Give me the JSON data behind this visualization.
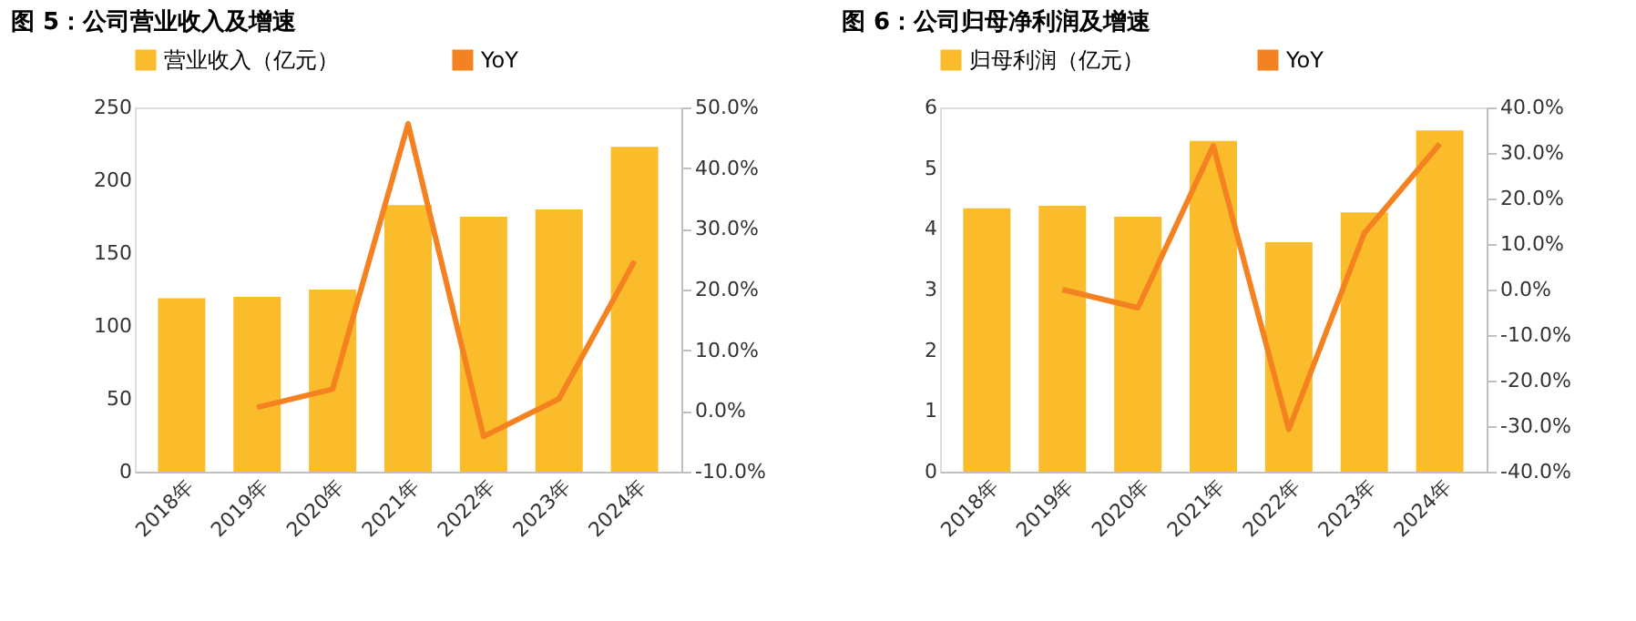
{
  "chart_data": [
    {
      "type": "bar",
      "title": "图 5：公司营业收入及增速",
      "categories": [
        "2018年",
        "2019年",
        "2020年",
        "2021年",
        "2022年",
        "2023年",
        "2024年"
      ],
      "legend": "top",
      "grid": false,
      "series": [
        {
          "name": "营业收入（亿元）",
          "color": "#fbbc2c",
          "values": [
            119,
            120,
            125,
            183,
            175,
            180,
            223
          ]
        },
        {
          "name": "YoY",
          "type": "line",
          "axis": "y2",
          "color": "#f58220",
          "values": [
            null,
            0.6,
            3.6,
            47.3,
            -4.2,
            2.0,
            24.7
          ]
        }
      ],
      "ylim": [
        0,
        250
      ],
      "yticks": [
        0,
        50,
        100,
        150,
        200,
        250
      ],
      "y2lim": [
        -10,
        50
      ],
      "y2ticks": [
        {
          "value": -10,
          "label": "-10.0%"
        },
        {
          "value": 0,
          "label": "0.0%"
        },
        {
          "value": 10,
          "label": "10.0%"
        },
        {
          "value": 20,
          "label": "20.0%"
        },
        {
          "value": 30,
          "label": "30.0%"
        },
        {
          "value": 40,
          "label": "40.0%"
        },
        {
          "value": 50,
          "label": "50.0%"
        }
      ]
    },
    {
      "type": "bar",
      "title": "图 6：公司归母净利润及增速",
      "categories": [
        "2018年",
        "2019年",
        "2020年",
        "2021年",
        "2022年",
        "2023年",
        "2024年"
      ],
      "legend": "top",
      "grid": false,
      "series": [
        {
          "name": "归母利润（亿元）",
          "color": "#fbbc2c",
          "values": [
            4.34,
            4.38,
            4.2,
            5.45,
            3.78,
            4.27,
            5.62
          ]
        },
        {
          "name": "YoY",
          "type": "line",
          "axis": "y2",
          "color": "#f58220",
          "values": [
            null,
            0.0,
            -4.0,
            31.6,
            -30.7,
            12.4,
            32.0
          ]
        }
      ],
      "ylim": [
        0,
        6
      ],
      "yticks": [
        0,
        1,
        2,
        3,
        4,
        5,
        6
      ],
      "y2lim": [
        -40,
        40
      ],
      "y2ticks": [
        {
          "value": -40,
          "label": "-40.0%"
        },
        {
          "value": -30,
          "label": "-30.0%"
        },
        {
          "value": -20,
          "label": "-20.0%"
        },
        {
          "value": -10,
          "label": "-10.0%"
        },
        {
          "value": 0,
          "label": "0.0%"
        },
        {
          "value": 10,
          "label": "10.0%"
        },
        {
          "value": 20,
          "label": "20.0%"
        },
        {
          "value": 30,
          "label": "30.0%"
        },
        {
          "value": 40,
          "label": "40.0%"
        }
      ]
    }
  ]
}
